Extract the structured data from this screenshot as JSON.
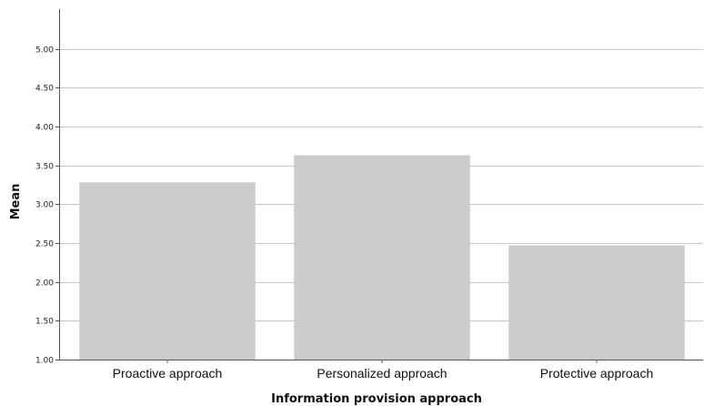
{
  "chart_data": {
    "type": "bar",
    "title": "",
    "xlabel": "Information provision approach",
    "ylabel": "Mean",
    "categories": [
      "Proactive approach",
      "Personalized approach",
      "Protective approach"
    ],
    "values": [
      3.28,
      3.63,
      2.47
    ],
    "ylim": [
      1.0,
      5.3
    ],
    "yticks": [
      "1.00",
      "1.50",
      "2.00",
      "2.50",
      "3.00",
      "3.50",
      "4.00",
      "4.50",
      "5.00"
    ],
    "grid": true,
    "bar_color": "#cccccc",
    "grid_color": "#c8c8c8"
  }
}
